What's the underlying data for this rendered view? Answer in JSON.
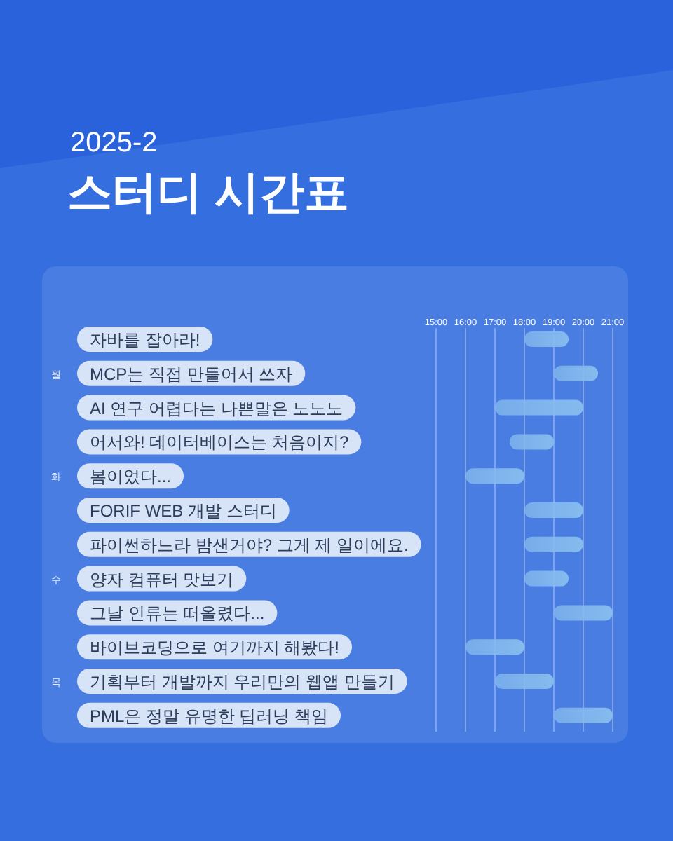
{
  "chart_data": {
    "type": "bar",
    "orientation": "horizontal",
    "subtitle": "2025-2",
    "title": "스터디 시간표",
    "categories": [
      "자바를 잡아라!",
      "MCP는 직접 만들어서 쓰자",
      "AI 연구 어렵다는 나쁜말은 노노노",
      "어서와! 데이터베이스는 처음이지?",
      "봄이었다...",
      "FORIF WEB 개발 스터디",
      "파이썬하느라 밤샌거야? 그게 제 일이에요.",
      "양자 컴퓨터 맛보기",
      "그날 인류는 떠올렸다...",
      "바이브코딩으로 여기까지 해봤다!",
      "기획부터 개발까지 우리만의 웹앱 만들기",
      "PML은 정말 유명한 딥러닝 책임"
    ],
    "base": [
      18,
      19,
      17,
      17.5,
      16,
      18,
      18,
      18,
      19,
      16,
      17,
      19
    ],
    "values": [
      1.5,
      1.5,
      3,
      1.5,
      2,
      2,
      2,
      1.5,
      2,
      2,
      2,
      2
    ],
    "color": "#86bbee",
    "xlim": [
      15,
      21
    ],
    "xticks": [
      {
        "value": 15,
        "label": "15:00"
      },
      {
        "value": 16,
        "label": "16:00"
      },
      {
        "value": 17,
        "label": "17:00"
      },
      {
        "value": 18,
        "label": "18:00"
      },
      {
        "value": 19,
        "label": "19:00"
      },
      {
        "value": 20,
        "label": "20:00"
      },
      {
        "value": 21,
        "label": "21:00"
      }
    ],
    "grid": "x",
    "annotations": [
      "월",
      "화",
      "수",
      "목"
    ]
  }
}
